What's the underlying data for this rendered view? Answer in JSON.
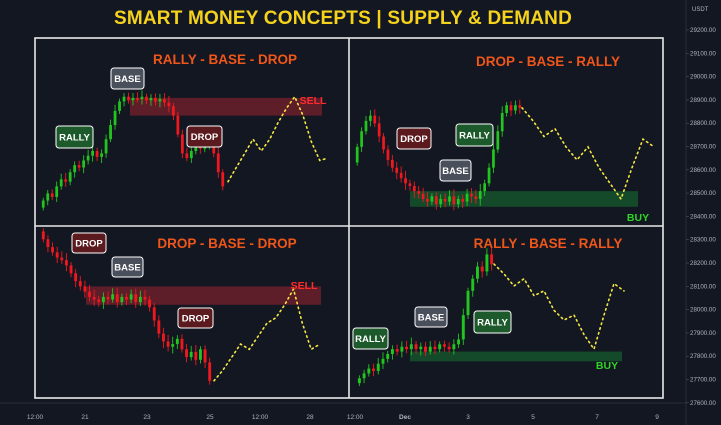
{
  "header": {
    "title": "SMART MONEY CONCEPTS | SUPPLY & DEMAND",
    "currency": "USDT"
  },
  "price_axis": {
    "ticks": [
      "29200.00",
      "29100.00",
      "29000.00",
      "28900.00",
      "28800.00",
      "28700.00",
      "28600.00",
      "28500.00",
      "28400.00",
      "28300.00",
      "28200.00",
      "28100.00",
      "28000.00",
      "27900.00",
      "27800.00",
      "27700.00",
      "27600.00"
    ]
  },
  "time_axis": {
    "ticks": [
      "12:00",
      "21",
      "23",
      "25",
      "12:00",
      "28",
      "12:00",
      "Dec",
      "3",
      "5",
      "7",
      "9"
    ]
  },
  "colors": {
    "background": "#131722",
    "up": "#22c51f",
    "down": "#f0181f",
    "title": "#f5d21c",
    "panel_title": "#f0561a",
    "supply_zone": "#6b1f2a",
    "demand_zone": "#15542a",
    "projection": "#f5e642",
    "buy": "#2fd426",
    "sell": "#ff2b2b",
    "tag_base": "#4a4f5c",
    "tag_rally": "#1c5a2b",
    "tag_drop": "#5b1a1e"
  },
  "chart_data": [
    {
      "type": "candlestick",
      "title": "RALLY - BASE - DROP",
      "tags": [
        "RALLY",
        "BASE",
        "DROP"
      ],
      "signal": "SELL",
      "zone": "supply",
      "closes": [
        28440,
        28470,
        28455,
        28500,
        28530,
        28520,
        28560,
        28590,
        28580,
        28610,
        28630,
        28650,
        28625,
        28640,
        28700,
        28760,
        28820,
        28860,
        28880,
        28865,
        28875,
        28870,
        28880,
        28865,
        28875,
        28860,
        28870,
        28855,
        28840,
        28800,
        28720,
        28640,
        28620,
        28650,
        28670,
        28660,
        28680,
        28690,
        28640,
        28560,
        28500
      ],
      "projection": [
        28520,
        28580,
        28640,
        28700,
        28650,
        28700,
        28770,
        28830,
        28880,
        28800,
        28690,
        28610,
        28620
      ]
    },
    {
      "type": "candlestick",
      "title": "DROP - BASE - RALLY",
      "tags": [
        "DROP",
        "BASE",
        "RALLY"
      ],
      "signal": "BUY",
      "zone": "demand",
      "closes": [
        28700,
        28760,
        28800,
        28820,
        28790,
        28740,
        28690,
        28650,
        28620,
        28600,
        28580,
        28560,
        28550,
        28530,
        28520,
        28500,
        28490,
        28510,
        28480,
        28500,
        28490,
        28510,
        28480,
        28500,
        28490,
        28520,
        28510,
        28500,
        28530,
        28560,
        28620,
        28690,
        28760,
        28830,
        28860,
        28840,
        28860,
        28850
      ],
      "projection": [
        28850,
        28800,
        28740,
        28770,
        28700,
        28650,
        28700,
        28620,
        28560,
        28500,
        28620,
        28730,
        28700
      ]
    },
    {
      "type": "candlestick",
      "title": "DROP - BASE - DROP",
      "tags": [
        "DROP",
        "BASE",
        "DROP"
      ],
      "signal": "SELL",
      "zone": "supply",
      "closes": [
        28300,
        28270,
        28250,
        28230,
        28220,
        28200,
        28170,
        28140,
        28120,
        28100,
        28080,
        28070,
        28060,
        28080,
        28070,
        28090,
        28060,
        28080,
        28070,
        28090,
        28060,
        28080,
        28070,
        28040,
        27990,
        27940,
        27910,
        27890,
        27900,
        27920,
        27880,
        27850,
        27870,
        27840,
        27880,
        27830,
        27760
      ],
      "projection": [
        27760,
        27800,
        27850,
        27900,
        27880,
        27930,
        27980,
        28000,
        28050,
        28110,
        27980,
        27880,
        27900
      ]
    },
    {
      "type": "candlestick",
      "title": "RALLY - BASE - RALLY",
      "tags": [
        "RALLY",
        "BASE",
        "RALLY"
      ],
      "signal": "BUY",
      "zone": "demand",
      "closes": [
        27740,
        27760,
        27780,
        27770,
        27800,
        27820,
        27840,
        27860,
        27850,
        27870,
        27860,
        27880,
        27860,
        27870,
        27850,
        27870,
        27860,
        27880,
        27870,
        27860,
        27880,
        27900,
        28000,
        28100,
        28150,
        28200,
        28180,
        28250,
        28210
      ],
      "projection": [
        28210,
        28170,
        28120,
        28150,
        28080,
        28100,
        28020,
        27980,
        28000,
        27920,
        27860,
        28000,
        28130,
        28100
      ]
    }
  ]
}
